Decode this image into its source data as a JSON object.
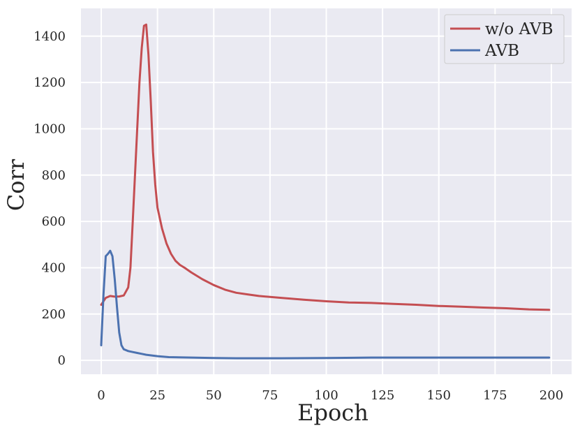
{
  "chart_data": {
    "type": "line",
    "title": "",
    "xlabel": "Epoch",
    "ylabel": "Corr",
    "xlim": [
      -9,
      209
    ],
    "ylim": [
      -60,
      1520
    ],
    "xticks": [
      0,
      25,
      50,
      75,
      100,
      125,
      150,
      175,
      200
    ],
    "yticks": [
      0,
      200,
      400,
      600,
      800,
      1000,
      1200,
      1400
    ],
    "grid": true,
    "legend_position": "top-right",
    "background": "#eaeaf2",
    "series": [
      {
        "name": "w/o AVB",
        "color": "#c44e52",
        "x": [
          0,
          2,
          4,
          6,
          8,
          10,
          12,
          13,
          14,
          15,
          16,
          17,
          18,
          19,
          20,
          21,
          22,
          23,
          24,
          25,
          27,
          29,
          31,
          33,
          35,
          37,
          40,
          45,
          50,
          55,
          60,
          65,
          70,
          80,
          90,
          100,
          110,
          120,
          130,
          140,
          150,
          160,
          170,
          180,
          190,
          199
        ],
        "y": [
          240,
          270,
          278,
          275,
          276,
          280,
          315,
          400,
          600,
          800,
          1000,
          1200,
          1350,
          1445,
          1450,
          1320,
          1120,
          900,
          760,
          660,
          570,
          505,
          460,
          430,
          412,
          400,
          380,
          350,
          325,
          305,
          292,
          285,
          278,
          270,
          262,
          255,
          250,
          248,
          244,
          240,
          235,
          232,
          228,
          225,
          220,
          218
        ]
      },
      {
        "name": "AVB",
        "color": "#4c72b0",
        "x": [
          0,
          1,
          2,
          3,
          4,
          5,
          6,
          7,
          8,
          9,
          10,
          11,
          12,
          14,
          16,
          18,
          20,
          25,
          30,
          40,
          50,
          60,
          80,
          100,
          120,
          140,
          160,
          180,
          199
        ],
        "y": [
          65,
          280,
          450,
          460,
          473,
          450,
          350,
          230,
          120,
          65,
          48,
          44,
          40,
          36,
          32,
          28,
          24,
          18,
          14,
          12,
          10,
          9,
          9,
          10,
          12,
          12,
          12,
          12,
          12
        ]
      }
    ]
  }
}
